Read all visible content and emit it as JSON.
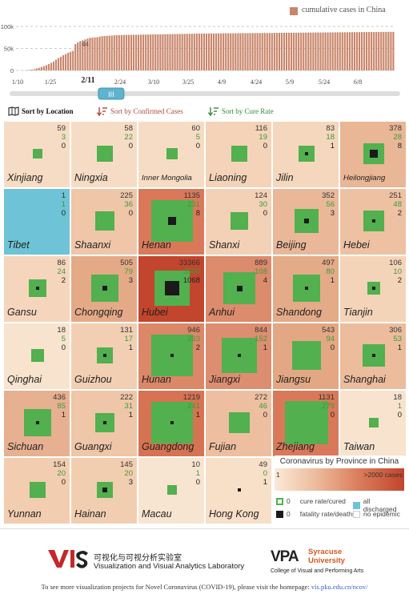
{
  "timeline": {
    "legend": "cumulative cases in China",
    "y_ticks": [
      "100k",
      "50k",
      "0"
    ],
    "peak_label": "44",
    "x_ticks": [
      "1/10",
      "1/25",
      "2/11",
      "2/24",
      "3/10",
      "3/25",
      "4/9",
      "4/24",
      "5/9",
      "5/24",
      "6/8"
    ],
    "selected_date": "2/11",
    "slider_handle": "III",
    "bar_color": "#c8856a",
    "slider_progress": 0.26
  },
  "chart_data": {
    "type": "bar",
    "title": "",
    "series": [
      {
        "name": "cumulative cases in China",
        "values": [
          0.02,
          0.04,
          0.1,
          0.3,
          0.6,
          1.3,
          2.0,
          2.7,
          4.5,
          6.0,
          7.7,
          9.7,
          11.8,
          14.4,
          17.2,
          20.4,
          24.3,
          28.0,
          31.1,
          34.5,
          37.2,
          40.2,
          42.6,
          44.6,
          59.8,
          63.8,
          66.5,
          68.5,
          70.5,
          72.4,
          74.2,
          74.6,
          75.0,
          75.5,
          76.9,
          77.7,
          78.1,
          78.6,
          78.9,
          79.3,
          79.8,
          80.0,
          80.2,
          80.4,
          80.6,
          80.7,
          80.8,
          80.9,
          81.0,
          81.1,
          81.2,
          81.3,
          81.4,
          81.5,
          81.6,
          81.7,
          81.8,
          81.9,
          82.0,
          82.1,
          82.2,
          82.3,
          82.4,
          82.5,
          82.6,
          82.7,
          82.8,
          82.9,
          83.0,
          83.1,
          83.2,
          83.3,
          83.4,
          83.5,
          83.6,
          83.7,
          83.8,
          83.9,
          83.9,
          84.0,
          84.0,
          84.1,
          84.1,
          84.2,
          84.2,
          84.3,
          84.3,
          84.4,
          84.4,
          84.5,
          84.5,
          84.6,
          84.6,
          84.7,
          84.7,
          84.8,
          84.8,
          84.9,
          84.9,
          85.0,
          85.0,
          85.0,
          85.1,
          85.1,
          85.2,
          85.2,
          85.3,
          85.3,
          85.4,
          85.4,
          85.5,
          85.5,
          85.6,
          85.6,
          85.7,
          85.7,
          85.8,
          85.8,
          85.9,
          85.9,
          86.0,
          86.0,
          86.1,
          86.1,
          86.2,
          86.2,
          86.3,
          86.3,
          86.4,
          86.4,
          86.5,
          86.5,
          86.6,
          86.6,
          86.7,
          86.7,
          86.8,
          86.8,
          86.9,
          86.9,
          87.0,
          87.0,
          87.1,
          87.1,
          87.2,
          87.2,
          87.3,
          87.3,
          87.4,
          87.4,
          87.5,
          87.5,
          87.6,
          87.6,
          87.7,
          87.7
        ]
      }
    ],
    "units": "thousand cases",
    "ylim": [
      0,
      100
    ],
    "xlabel": "",
    "ylabel": "",
    "grid": true
  },
  "sort": {
    "location": "Sort by Location",
    "confirmed": "Sort by Confirmed Cases",
    "cure": "Sort by Cure Rate"
  },
  "provinces": [
    {
      "name": "Xinjiang",
      "c": "59",
      "r": "3",
      "d": "0",
      "fill": "#f6dcc4"
    },
    {
      "name": "Ningxia",
      "c": "58",
      "r": "22",
      "d": "0",
      "fill": "#f6dcc4"
    },
    {
      "name": "Inner Mongolia",
      "c": "60",
      "r": "5",
      "d": "0",
      "fill": "#f6dcc4"
    },
    {
      "name": "Liaoning",
      "c": "116",
      "r": "19",
      "d": "0",
      "fill": "#f4d3b8"
    },
    {
      "name": "Jilin",
      "c": "83",
      "r": "18",
      "d": "1",
      "fill": "#f5d7bd"
    },
    {
      "name": "Heilongjiang",
      "c": "378",
      "r": "28",
      "d": "8",
      "fill": "#e9b696"
    },
    {
      "name": "Tibet",
      "c": "1",
      "r": "1",
      "d": "0",
      "fill": "#6ec3d6"
    },
    {
      "name": "Shaanxi",
      "c": "225",
      "r": "36",
      "d": "0",
      "fill": "#efc6a8"
    },
    {
      "name": "Henan",
      "c": "1135",
      "r": "231",
      "d": "8",
      "fill": "#d9795a"
    },
    {
      "name": "Shanxi",
      "c": "124",
      "r": "30",
      "d": "0",
      "fill": "#f3d1b6"
    },
    {
      "name": "Beijing",
      "c": "352",
      "r": "56",
      "d": "3",
      "fill": "#eab899"
    },
    {
      "name": "Hebei",
      "c": "251",
      "r": "48",
      "d": "2",
      "fill": "#eec1a3"
    },
    {
      "name": "Gansu",
      "c": "86",
      "r": "24",
      "d": "2",
      "fill": "#f5d6bc"
    },
    {
      "name": "Chongqing",
      "c": "505",
      "r": "79",
      "d": "3",
      "fill": "#e4aa88"
    },
    {
      "name": "Hubei",
      "c": "33366",
      "r": "3500",
      "d": "1068",
      "fill": "#c2452d"
    },
    {
      "name": "Anhui",
      "c": "889",
      "r": "108",
      "d": "4",
      "fill": "#dc8b6c"
    },
    {
      "name": "Shandong",
      "c": "497",
      "r": "80",
      "d": "1",
      "fill": "#e4ab89"
    },
    {
      "name": "Tianjin",
      "c": "106",
      "r": "10",
      "d": "2",
      "fill": "#f4d4b9"
    },
    {
      "name": "Qinghai",
      "c": "18",
      "r": "5",
      "d": "0",
      "fill": "#f8e3ce"
    },
    {
      "name": "Guizhou",
      "c": "131",
      "r": "17",
      "d": "1",
      "fill": "#f2cfb3"
    },
    {
      "name": "Hunan",
      "c": "946",
      "r": "263",
      "d": "2",
      "fill": "#db8768"
    },
    {
      "name": "Jiangxi",
      "c": "844",
      "r": "152",
      "d": "1",
      "fill": "#dd8e70"
    },
    {
      "name": "Jiangsu",
      "c": "543",
      "r": "94",
      "d": "0",
      "fill": "#e3a784"
    },
    {
      "name": "Shanghai",
      "c": "306",
      "r": "53",
      "d": "1",
      "fill": "#ecbc9d"
    },
    {
      "name": "Sichuan",
      "c": "436",
      "r": "85",
      "d": "1",
      "fill": "#e7b090"
    },
    {
      "name": "Guangxi",
      "c": "222",
      "r": "31",
      "d": "1",
      "fill": "#efc6a8"
    },
    {
      "name": "Guangdong",
      "c": "1219",
      "r": "241",
      "d": "1",
      "fill": "#d67352"
    },
    {
      "name": "Fujian",
      "c": "272",
      "r": "46",
      "d": "0",
      "fill": "#edbfa0"
    },
    {
      "name": "Zhejiang",
      "c": "1131",
      "r": "279",
      "d": "0",
      "fill": "#d9795a"
    },
    {
      "name": "Taiwan",
      "c": "18",
      "r": "1",
      "d": "0",
      "fill": "#f8e3ce"
    },
    {
      "name": "Yunnan",
      "c": "154",
      "r": "20",
      "d": "0",
      "fill": "#f2cdb0"
    },
    {
      "name": "Hainan",
      "c": "145",
      "r": "20",
      "d": "3",
      "fill": "#f2ceb1"
    },
    {
      "name": "Macau",
      "c": "10",
      "r": "1",
      "d": "0",
      "fill": "#f8e5d1"
    },
    {
      "name": "Hong Kong",
      "c": "49",
      "r": "0",
      "d": "1",
      "fill": "#f7dfc8"
    }
  ],
  "legend": {
    "title": "Coronavirus by Province in China",
    "min": "1",
    "max": ">2000 cases",
    "cure": "cure rate/cured",
    "fatality": "fatality rate/deaths",
    "discharged": "all discharged",
    "no_epidemic": "no epidemic",
    "zero": "0"
  },
  "footer": {
    "lab_cn": "可视化与可视分析实验室",
    "lab_en": "Visualization and Visual Analytics Laboratory",
    "vpa": "VPA",
    "su1": "Syracuse",
    "su2": "University",
    "su_sub": "College of Visual and Performing Arts",
    "note": "To see more visualization projects for Novel Coronavirus (COVID-19), please visit the homepage:",
    "url": "vis.pku.edu.cn/ncov/"
  }
}
